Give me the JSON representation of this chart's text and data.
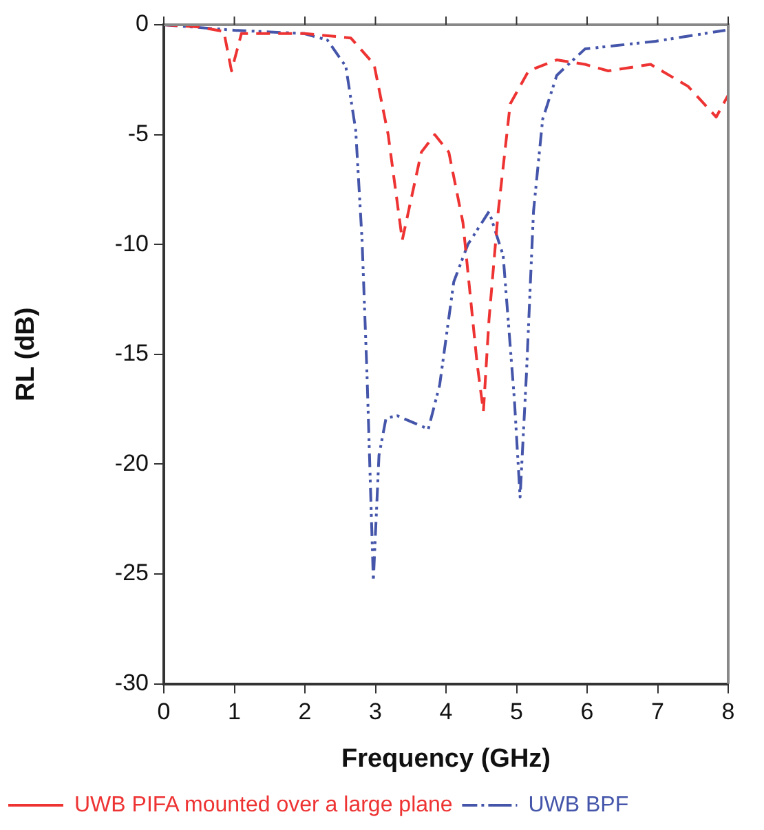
{
  "chart_data": {
    "type": "line",
    "xlabel": "Frequency (GHz)",
    "ylabel": "RL (dB)",
    "xlim": [
      0,
      8
    ],
    "xticks": [
      0,
      1,
      2,
      3,
      4,
      5,
      6,
      7,
      8
    ],
    "ylim": [
      -30,
      0
    ],
    "yticks": [
      -30,
      -25,
      -20,
      -15,
      -10,
      -5,
      0
    ],
    "grid": false,
    "legend": "bottom",
    "marker": "none",
    "series": [
      {
        "name": "UWB PIFA mounted over a large plane",
        "color": "#ee3333",
        "line_style": "dashed",
        "x": [
          0,
          0.5,
          0.85,
          0.96,
          1.1,
          1.5,
          2,
          2.65,
          2.98,
          3.18,
          3.38,
          3.65,
          3.84,
          4.04,
          4.24,
          4.44,
          4.53,
          4.61,
          4.74,
          4.91,
          5.17,
          5.57,
          5.97,
          6.3,
          6.9,
          7.43,
          7.83,
          8
        ],
        "values": [
          0,
          -0.1,
          -0.3,
          -2.1,
          -0.4,
          -0.4,
          -0.4,
          -0.6,
          -1.8,
          -5,
          -9.8,
          -5.8,
          -5,
          -5.8,
          -9,
          -15.4,
          -17.6,
          -13.4,
          -8.5,
          -3.6,
          -2.1,
          -1.6,
          -1.8,
          -2.1,
          -1.8,
          -2.8,
          -4.2,
          -3.2
        ]
      },
      {
        "name": "UWB BPF",
        "color": "#4455aa",
        "line_style": "dashdotdot",
        "x": [
          0,
          1,
          1.99,
          2.32,
          2.58,
          2.72,
          2.81,
          2.88,
          2.97,
          3.05,
          3.15,
          3.31,
          3.75,
          3.91,
          4.11,
          4.31,
          4.61,
          4.81,
          4.97,
          5.05,
          5.14,
          5.24,
          5.37,
          5.57,
          5.97,
          6.97,
          7.96
        ],
        "values": [
          0,
          -0.25,
          -0.4,
          -0.7,
          -1.9,
          -4.8,
          -9.8,
          -15.9,
          -25.3,
          -19.6,
          -17.9,
          -17.8,
          -18.4,
          -16.4,
          -11.7,
          -10,
          -8.5,
          -10.5,
          -17.1,
          -21.5,
          -15.9,
          -8.5,
          -4.3,
          -2.3,
          -1.1,
          -0.75,
          -0.25
        ]
      }
    ]
  }
}
